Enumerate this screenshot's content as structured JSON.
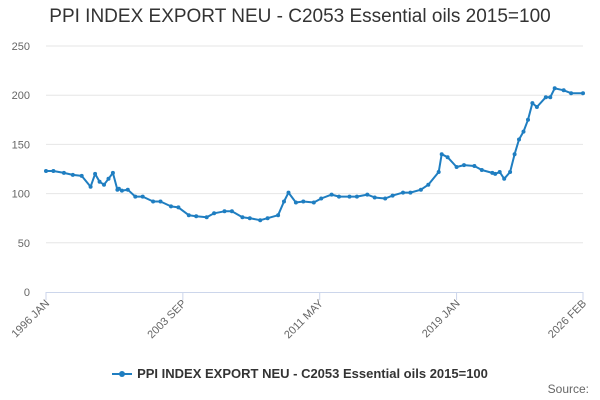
{
  "chart_data": {
    "type": "line",
    "title": "PPI INDEX EXPORT NEU - C2053 Essential oils 2015=100",
    "xlabel": "",
    "ylabel": "",
    "ylim": [
      0,
      250
    ],
    "yticks": [
      0,
      50,
      100,
      150,
      200,
      250
    ],
    "xlim": [
      "1996-01",
      "2026-02"
    ],
    "xticks": [
      "1996 JAN",
      "2003 SEP",
      "2011 MAY",
      "2019 JAN",
      "2026 FEB"
    ],
    "grid": true,
    "legend_position": "bottom",
    "series": [
      {
        "name": "PPI INDEX EXPORT NEU - C2053 Essential oils 2015=100",
        "color": "#1f7ec1",
        "x": [
          "1996-01",
          "1996-06",
          "1997-01",
          "1997-07",
          "1998-01",
          "1998-07",
          "1998-10",
          "1999-01",
          "1999-04",
          "1999-07",
          "1999-10",
          "2000-01",
          "2000-02",
          "2000-04",
          "2000-08",
          "2001-01",
          "2001-06",
          "2002-01",
          "2002-06",
          "2003-01",
          "2003-06",
          "2004-01",
          "2004-06",
          "2005-01",
          "2005-06",
          "2006-01",
          "2006-06",
          "2007-01",
          "2007-06",
          "2008-01",
          "2008-06",
          "2009-01",
          "2009-05",
          "2009-08",
          "2010-01",
          "2010-06",
          "2011-01",
          "2011-06",
          "2012-01",
          "2012-06",
          "2013-01",
          "2013-06",
          "2014-01",
          "2014-06",
          "2015-01",
          "2015-06",
          "2016-01",
          "2016-06",
          "2017-01",
          "2017-06",
          "2018-01",
          "2018-03",
          "2018-07",
          "2019-01",
          "2019-06",
          "2020-01",
          "2020-06",
          "2021-01",
          "2021-03",
          "2021-06",
          "2021-09",
          "2022-01",
          "2022-04",
          "2022-07",
          "2022-10",
          "2023-01",
          "2023-04",
          "2023-07",
          "2024-01",
          "2024-04",
          "2024-07",
          "2025-01",
          "2025-06",
          "2026-02"
        ],
        "values": [
          123,
          123,
          121,
          119,
          118,
          107,
          120,
          112,
          109,
          115,
          121,
          104,
          105,
          103,
          104,
          97,
          97,
          92,
          92,
          87,
          86,
          78,
          77,
          76,
          80,
          82,
          82,
          76,
          75,
          73,
          75,
          78,
          92,
          101,
          91,
          92,
          91,
          95,
          99,
          97,
          97,
          97,
          99,
          96,
          95,
          98,
          101,
          101,
          104,
          109,
          122,
          140,
          137,
          127,
          129,
          128,
          124,
          121,
          120,
          122,
          115,
          122,
          140,
          155,
          163,
          175,
          192,
          188,
          198,
          198,
          207,
          205,
          202,
          202
        ]
      }
    ]
  },
  "legend": {
    "label": "PPI INDEX EXPORT NEU - C2053 Essential oils 2015=100"
  },
  "footer": {
    "source_label": "Source:"
  }
}
